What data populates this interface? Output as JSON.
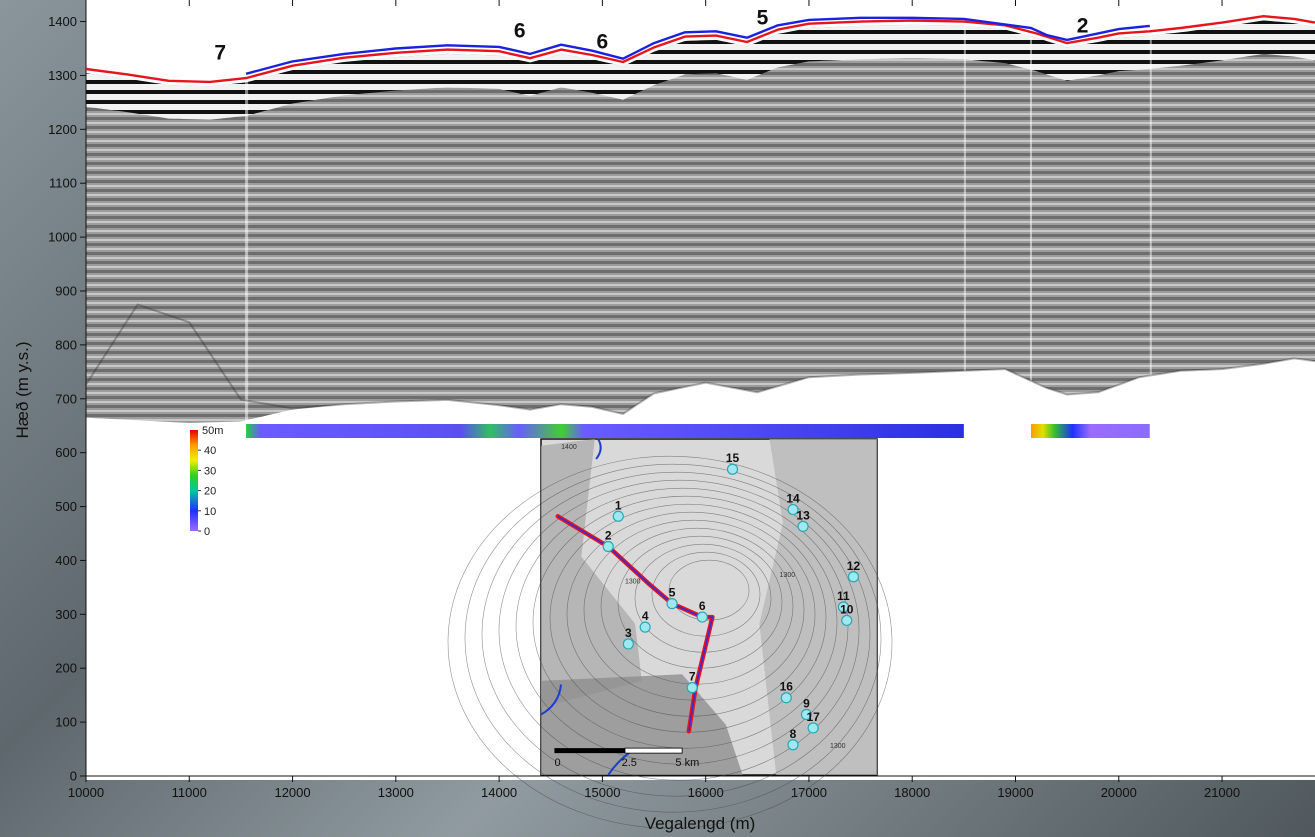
{
  "chart_data": {
    "type": "line",
    "xlabel": "Vegalengd (m)",
    "ylabel": "Hæð (m y.s.)",
    "xlim": [
      10000,
      21900
    ],
    "ylim": [
      0,
      1440
    ],
    "x_ticks": [
      10000,
      11000,
      12000,
      13000,
      14000,
      15000,
      16000,
      17000,
      18000,
      19000,
      20000,
      21000
    ],
    "y_ticks": [
      0,
      100,
      200,
      300,
      400,
      500,
      600,
      700,
      800,
      900,
      1000,
      1100,
      1200,
      1300,
      1400
    ],
    "series": [
      {
        "color": "#e8141c",
        "x": [
          10000,
          10400,
          10800,
          11200,
          11550,
          12000,
          12500,
          13000,
          13500,
          14000,
          14300,
          14600,
          14900,
          15200,
          15500,
          15800,
          16100,
          16400,
          16700,
          17000,
          17500,
          18000,
          18500,
          18900,
          19200,
          19500,
          19800,
          20000,
          20300,
          20600,
          21000,
          21400,
          21700,
          21900
        ],
        "y": [
          1312,
          1302,
          1290,
          1288,
          1295,
          1318,
          1333,
          1342,
          1348,
          1345,
          1332,
          1348,
          1338,
          1325,
          1352,
          1372,
          1374,
          1362,
          1385,
          1396,
          1400,
          1402,
          1400,
          1393,
          1378,
          1360,
          1370,
          1378,
          1382,
          1388,
          1398,
          1410,
          1405,
          1398
        ]
      },
      {
        "color": "#1a22e0",
        "x": [
          11550,
          12000,
          12500,
          13000,
          13500,
          14000,
          14300,
          14600,
          14900,
          15200,
          15500,
          15800,
          16100,
          16400,
          16700,
          17000,
          17500,
          18000,
          18500,
          19150,
          19300,
          19500,
          19800,
          20000,
          20300
        ],
        "y": [
          1303,
          1326,
          1340,
          1350,
          1356,
          1353,
          1340,
          1357,
          1346,
          1331,
          1360,
          1380,
          1382,
          1370,
          1393,
          1403,
          1407,
          1407,
          1405,
          1388,
          1375,
          1366,
          1378,
          1386,
          1392
        ]
      }
    ],
    "peak_labels": [
      {
        "text": "7",
        "x": 11300,
        "y": 1330
      },
      {
        "text": "6",
        "x": 14200,
        "y": 1370
      },
      {
        "text": "6",
        "x": 15000,
        "y": 1350
      },
      {
        "text": "5",
        "x": 16550,
        "y": 1395
      },
      {
        "text": "2",
        "x": 19650,
        "y": 1380
      }
    ],
    "bedrock": {
      "x": [
        10000,
        10500,
        11000,
        11500,
        12000,
        12500,
        13000,
        13500,
        14000,
        14300,
        14600,
        14900,
        15200,
        15500,
        16000,
        16500,
        17000,
        17500,
        18000,
        18500,
        18900,
        19300,
        19500,
        19800,
        20200,
        20600,
        21000,
        21400,
        21700,
        21900
      ],
      "y": [
        665,
        660,
        655,
        658,
        680,
        690,
        695,
        698,
        688,
        680,
        690,
        685,
        672,
        710,
        730,
        712,
        740,
        745,
        748,
        752,
        755,
        720,
        708,
        712,
        740,
        752,
        755,
        765,
        775,
        770
      ]
    },
    "thickness_bar": {
      "segments": [
        [
          11550,
          18500
        ],
        [
          19150,
          20300
        ]
      ],
      "legend_unit": "50m",
      "legend_ticks": [
        "40",
        "30",
        "20",
        "10",
        "0"
      ]
    },
    "inset_map": {
      "points": [
        {
          "label": "15",
          "x": 0.57,
          "y": 0.09
        },
        {
          "label": "1",
          "x": 0.23,
          "y": 0.23
        },
        {
          "label": "14",
          "x": 0.75,
          "y": 0.21
        },
        {
          "label": "13",
          "x": 0.78,
          "y": 0.26
        },
        {
          "label": "2",
          "x": 0.2,
          "y": 0.32
        },
        {
          "label": "12",
          "x": 0.93,
          "y": 0.41
        },
        {
          "label": "11",
          "x": 0.9,
          "y": 0.5
        },
        {
          "label": "10",
          "x": 0.91,
          "y": 0.54
        },
        {
          "label": "5",
          "x": 0.39,
          "y": 0.49
        },
        {
          "label": "6",
          "x": 0.48,
          "y": 0.53
        },
        {
          "label": "4",
          "x": 0.31,
          "y": 0.56
        },
        {
          "label": "3",
          "x": 0.26,
          "y": 0.61
        },
        {
          "label": "7",
          "x": 0.45,
          "y": 0.74
        },
        {
          "label": "16",
          "x": 0.73,
          "y": 0.77
        },
        {
          "label": "9",
          "x": 0.79,
          "y": 0.82
        },
        {
          "label": "17",
          "x": 0.81,
          "y": 0.86
        },
        {
          "label": "8",
          "x": 0.75,
          "y": 0.91
        }
      ],
      "scale_labels": [
        "0",
        "2.5",
        "5 km"
      ],
      "contour_labels": [
        "1400",
        "1300",
        "1300",
        "1300"
      ]
    }
  }
}
